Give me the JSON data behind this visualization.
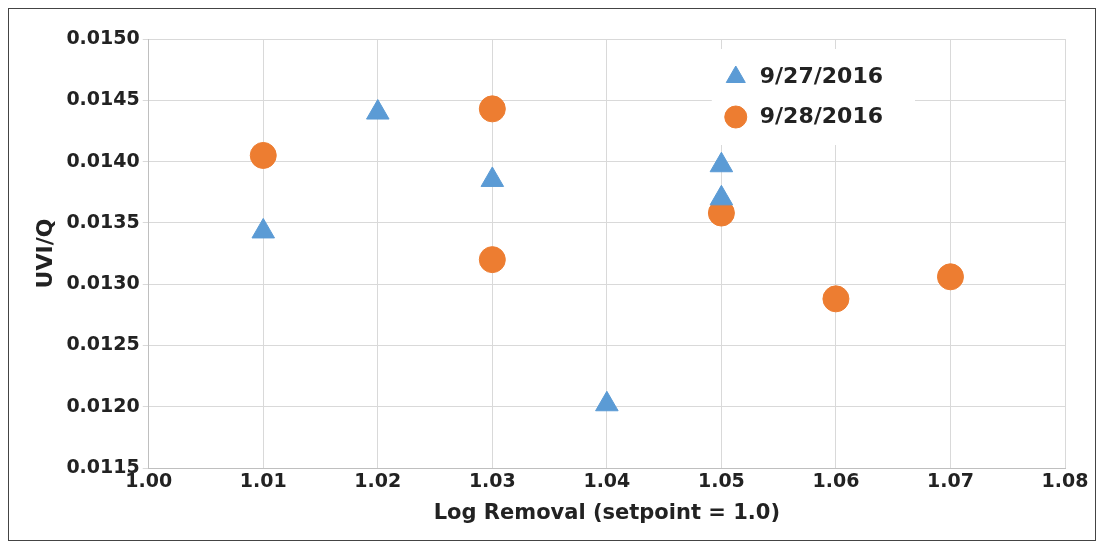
{
  "chart_data": {
    "type": "scatter",
    "xlabel": "Log Removal (setpoint = 1.0)",
    "ylabel": "UVI/Q",
    "series": [
      {
        "name": "9/27/2016",
        "color": "#5b9bd5",
        "marker": "triangle",
        "x": [
          1.01,
          1.02,
          1.03,
          1.04,
          1.05,
          1.05
        ],
        "values": [
          0.01343,
          0.0144,
          0.01385,
          0.01202,
          0.01397,
          0.0137
        ]
      },
      {
        "name": "9/28/2016",
        "color": "#ed7d31",
        "marker": "circle",
        "x": [
          1.01,
          1.03,
          1.03,
          1.05,
          1.06,
          1.07
        ],
        "values": [
          0.01405,
          0.01443,
          0.0132,
          0.01358,
          0.01288,
          0.01306
        ]
      }
    ],
    "xlim": [
      1.0,
      1.08
    ],
    "xticks": [
      {
        "value": 1.0,
        "label": "1.00"
      },
      {
        "value": 1.01,
        "label": "1.01"
      },
      {
        "value": 1.02,
        "label": "1.02"
      },
      {
        "value": 1.03,
        "label": "1.03"
      },
      {
        "value": 1.04,
        "label": "1.04"
      },
      {
        "value": 1.05,
        "label": "1.05"
      },
      {
        "value": 1.06,
        "label": "1.06"
      },
      {
        "value": 1.07,
        "label": "1.07"
      },
      {
        "value": 1.08,
        "label": "1.08"
      }
    ],
    "ylim": [
      0.0115,
      0.015
    ],
    "yticks": [
      {
        "value": 0.0115,
        "label": "0.0115"
      },
      {
        "value": 0.012,
        "label": "0.0120"
      },
      {
        "value": 0.0125,
        "label": "0.0125"
      },
      {
        "value": 0.013,
        "label": "0.0130"
      },
      {
        "value": 0.0135,
        "label": "0.0135"
      },
      {
        "value": 0.014,
        "label": "0.0140"
      },
      {
        "value": 0.0145,
        "label": "0.0145"
      },
      {
        "value": 0.015,
        "label": "0.0150"
      }
    ],
    "grid": true,
    "legend": "top right"
  }
}
